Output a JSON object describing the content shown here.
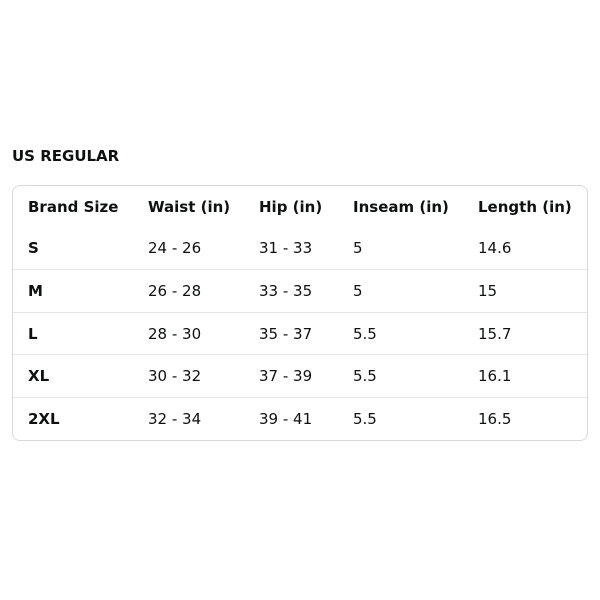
{
  "title": "US REGULAR",
  "headers": [
    "Brand Size",
    "Waist (in)",
    "Hip (in)",
    "Inseam (in)",
    "Length (in)"
  ],
  "rows": [
    [
      "S",
      "24 - 26",
      "31 - 33",
      "5",
      "14.6"
    ],
    [
      "M",
      "26 - 28",
      "33 - 35",
      "5",
      "15"
    ],
    [
      "L",
      "28 - 30",
      "35 - 37",
      "5.5",
      "15.7"
    ],
    [
      "XL",
      "30 - 32",
      "37 - 39",
      "5.5",
      "16.1"
    ],
    [
      "2XL",
      "32 - 34",
      "39 - 41",
      "5.5",
      "16.5"
    ]
  ]
}
